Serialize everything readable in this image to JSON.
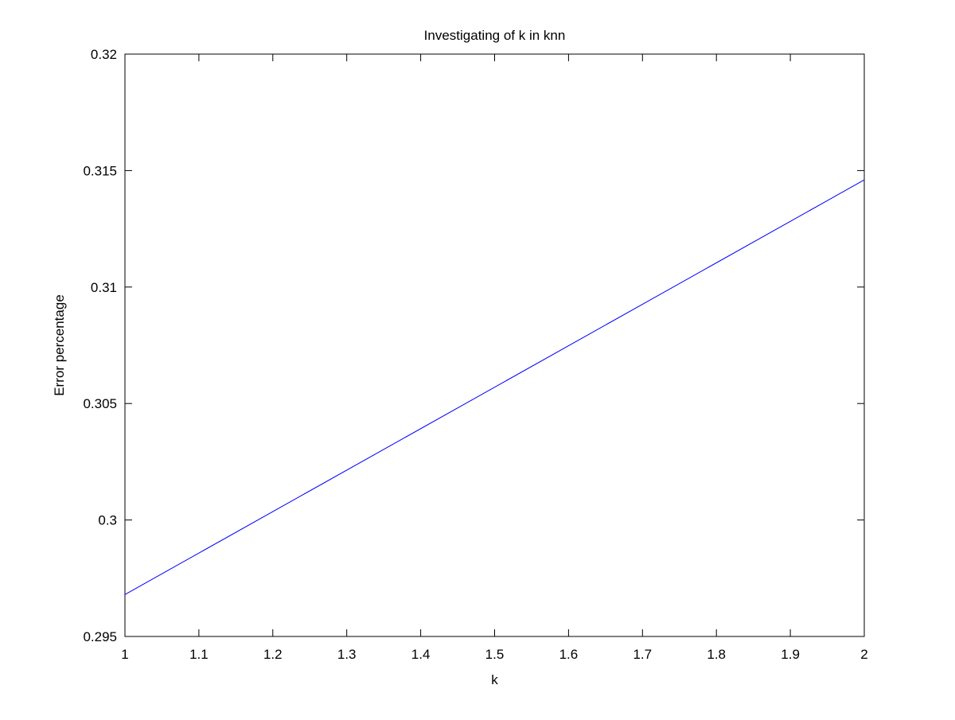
{
  "chart_data": {
    "type": "line",
    "title": "Investigating of k in knn",
    "xlabel": "k",
    "ylabel": "Error percentage",
    "xlim": [
      1,
      2
    ],
    "ylim": [
      0.295,
      0.32
    ],
    "xticks": [
      1,
      1.1,
      1.2,
      1.3,
      1.4,
      1.5,
      1.6,
      1.7,
      1.8,
      1.9,
      2
    ],
    "xtick_labels": [
      "1",
      "1.1",
      "1.2",
      "1.3",
      "1.4",
      "1.5",
      "1.6",
      "1.7",
      "1.8",
      "1.9",
      "2"
    ],
    "yticks": [
      0.295,
      0.3,
      0.305,
      0.31,
      0.315,
      0.32
    ],
    "ytick_labels": [
      "0.295",
      "0.3",
      "0.305",
      "0.31",
      "0.315",
      "0.32"
    ],
    "grid": false,
    "series": [
      {
        "color": "#0000ff",
        "x": [
          1,
          2
        ],
        "y": [
          0.2968,
          0.3146
        ]
      }
    ]
  }
}
